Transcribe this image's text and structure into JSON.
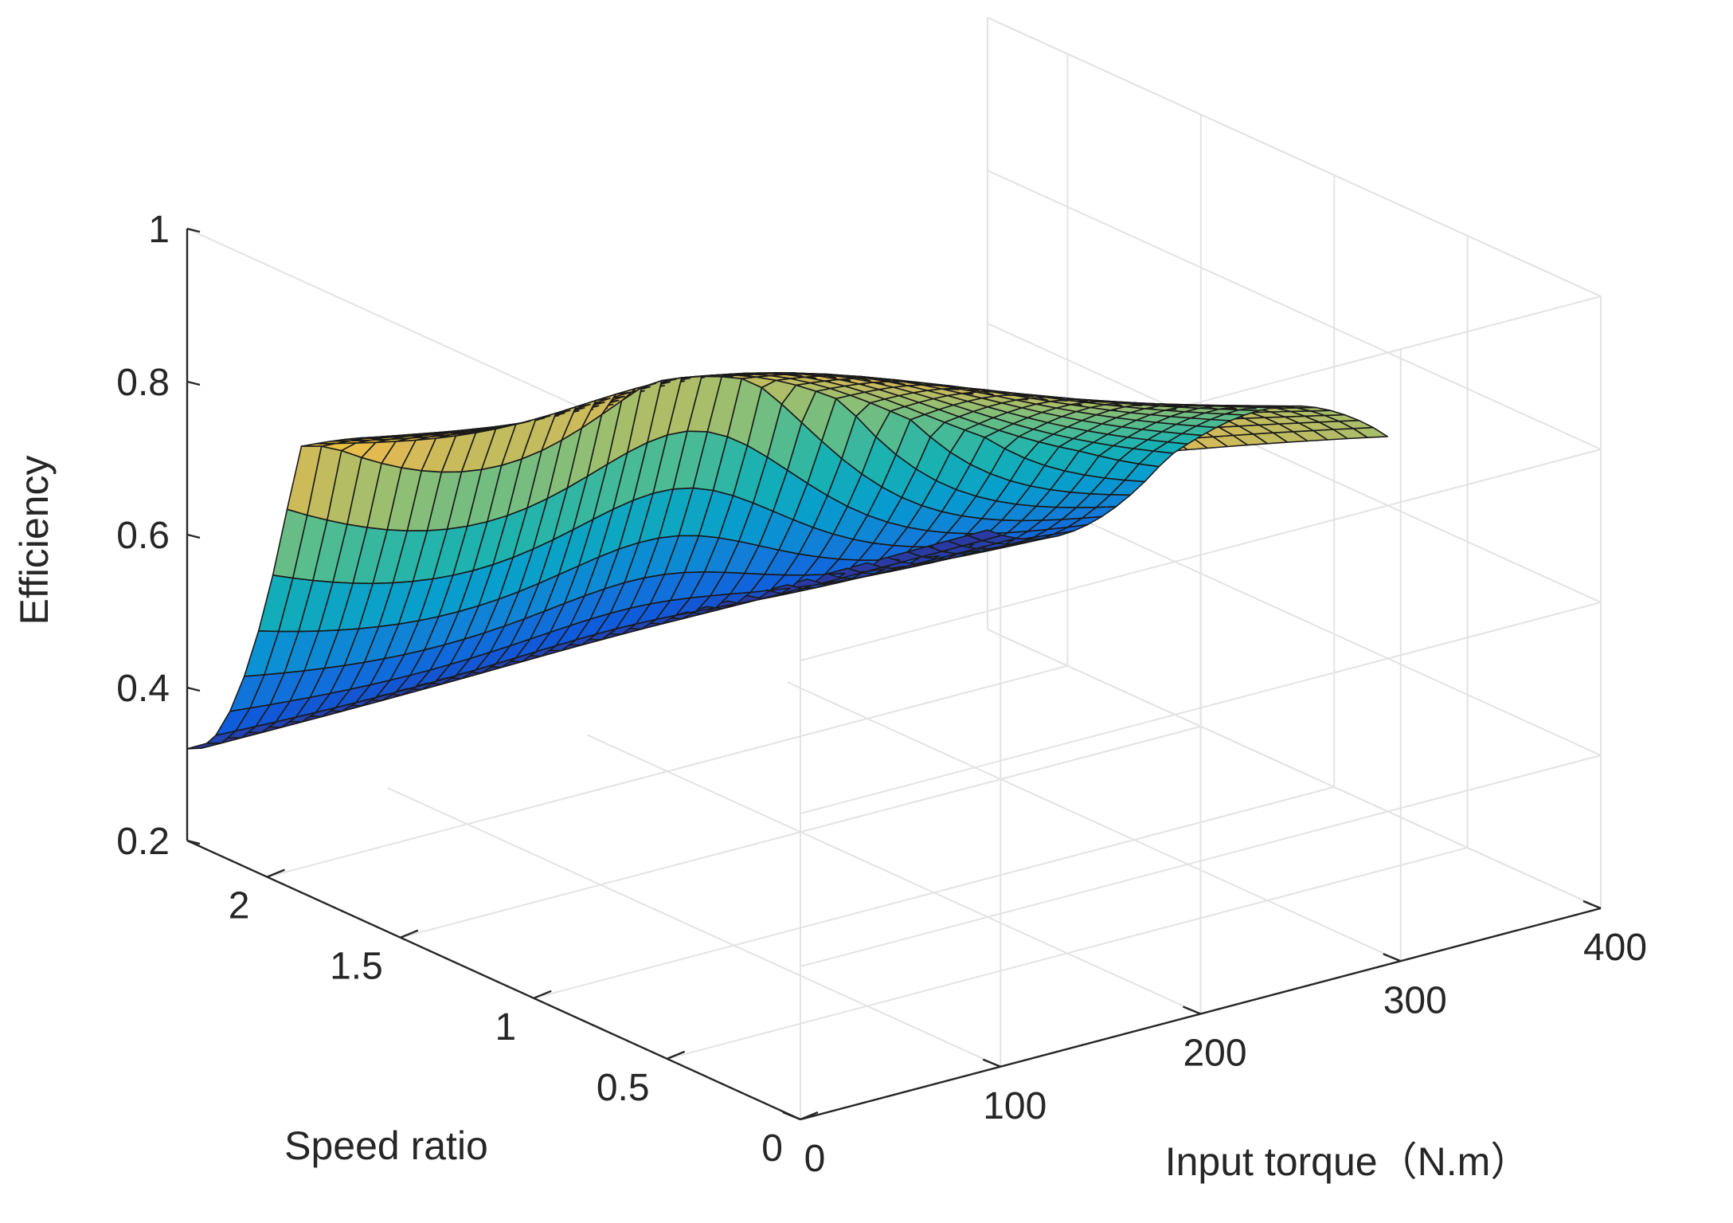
{
  "chart_data": {
    "type": "surface",
    "xlabel": "Input torque（N.m）",
    "ylabel": "Speed ratio",
    "zlabel": "Efficiency",
    "xlim": [
      0,
      400
    ],
    "ylim": [
      0,
      2.3
    ],
    "zlim": [
      0.2,
      1.0
    ],
    "x_ticks": [
      "0",
      "100",
      "200",
      "300",
      "400"
    ],
    "y_ticks": [
      "0",
      "0.5",
      "1",
      "1.5",
      "2"
    ],
    "z_ticks": [
      "0.2",
      "0.4",
      "0.6",
      "0.8",
      "1"
    ],
    "grid": true,
    "colormap": "parula",
    "x_range_surface": [
      0,
      400
    ],
    "y_range_surface": [
      0.8,
      2.3
    ],
    "z_range_surface": [
      0.31,
      0.88
    ],
    "grid_size": [
      40,
      28
    ],
    "sample_points": [
      {
        "input_torque": 0,
        "speed_ratio": 2.3,
        "efficiency": 0.32
      },
      {
        "input_torque": 0,
        "speed_ratio": 1.9,
        "efficiency": 0.78
      },
      {
        "input_torque": 0,
        "speed_ratio": 0.8,
        "efficiency": 0.83
      },
      {
        "input_torque": 400,
        "speed_ratio": 2.3,
        "efficiency": 0.33
      },
      {
        "input_torque": 400,
        "speed_ratio": 1.9,
        "efficiency": 0.53
      },
      {
        "input_torque": 400,
        "speed_ratio": 0.8,
        "efficiency": 0.69
      },
      {
        "input_torque": 200,
        "speed_ratio": 1.2,
        "efficiency": 0.87
      }
    ]
  }
}
